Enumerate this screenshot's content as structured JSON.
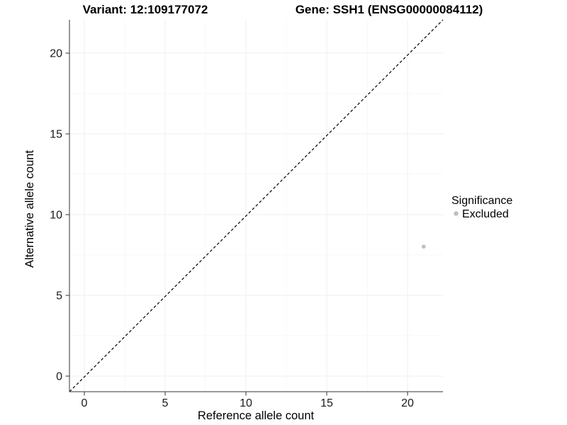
{
  "chart_data": {
    "type": "scatter",
    "titles": {
      "variant": "Variant: 12:109177072",
      "gene": "Gene: SSH1 (ENSG00000084112)"
    },
    "xlabel": "Reference allele count",
    "ylabel": "Alternative allele count",
    "xlim": [
      -1,
      22.1
    ],
    "ylim": [
      -1,
      22.1
    ],
    "x_ticks": [
      "0",
      "5",
      "10",
      "15",
      "20"
    ],
    "y_ticks": [
      "0",
      "5",
      "10",
      "15",
      "20"
    ],
    "grid": true,
    "reference_line": {
      "type": "identity-diagonal",
      "style": "dashed",
      "color": "#000000"
    },
    "series": [
      {
        "name": "Excluded",
        "color": "#bebebe",
        "points": [
          {
            "x": 21,
            "y": 8
          }
        ]
      }
    ],
    "legend": {
      "title": "Significance",
      "position": "right",
      "entries": [
        {
          "label": "Excluded",
          "color": "#bebebe"
        }
      ]
    }
  },
  "colors": {
    "background": "#ffffff",
    "axis": "#333333",
    "grid_major": "#efefef",
    "grid_minor": "#f7f7f7",
    "point": "#bebebe"
  }
}
